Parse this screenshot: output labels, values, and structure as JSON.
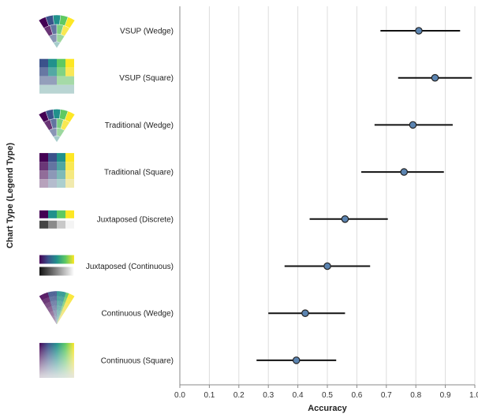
{
  "chart_data": {
    "type": "scatter",
    "xlabel": "Accuracy",
    "ylabel": "Chart Type (Legend Type)",
    "xlim": [
      0.0,
      1.0
    ],
    "xticks": [
      "0.0",
      "0.1",
      "0.2",
      "0.3",
      "0.4",
      "0.5",
      "0.6",
      "0.7",
      "0.8",
      "0.9",
      "1.0"
    ],
    "grid": true,
    "categories": [
      "VSUP (Wedge)",
      "VSUP (Square)",
      "Traditional (Wedge)",
      "Traditional (Square)",
      "Juxtaposed (Discrete)",
      "Juxtaposed (Continuous)",
      "Continuous (Wedge)",
      "Continuous (Square)"
    ],
    "points": [
      {
        "category": "VSUP (Wedge)",
        "value": 0.81,
        "ci": [
          0.68,
          0.95
        ]
      },
      {
        "category": "VSUP (Square)",
        "value": 0.865,
        "ci": [
          0.74,
          0.99
        ]
      },
      {
        "category": "Traditional (Wedge)",
        "value": 0.79,
        "ci": [
          0.66,
          0.925
        ]
      },
      {
        "category": "Traditional (Square)",
        "value": 0.76,
        "ci": [
          0.615,
          0.895
        ]
      },
      {
        "category": "Juxtaposed (Discrete)",
        "value": 0.56,
        "ci": [
          0.44,
          0.705
        ]
      },
      {
        "category": "Juxtaposed (Continuous)",
        "value": 0.5,
        "ci": [
          0.355,
          0.645
        ]
      },
      {
        "category": "Continuous (Wedge)",
        "value": 0.425,
        "ci": [
          0.3,
          0.56
        ]
      },
      {
        "category": "Continuous (Square)",
        "value": 0.395,
        "ci": [
          0.26,
          0.53
        ]
      }
    ],
    "legend_icons": [
      "vsup-wedge-icon",
      "vsup-square-icon",
      "traditional-wedge-icon",
      "traditional-square-icon",
      "juxtaposed-discrete-icon",
      "juxtaposed-continuous-icon",
      "continuous-wedge-icon",
      "continuous-square-icon"
    ],
    "colors": {
      "point_fill": "#5b84b1",
      "point_stroke": "#222222",
      "error_bar": "#111111",
      "grid": "#dddddd",
      "axis": "#888888",
      "viridis": [
        "#440154",
        "#3b528b",
        "#21918c",
        "#5ec962",
        "#fde725"
      ]
    }
  }
}
